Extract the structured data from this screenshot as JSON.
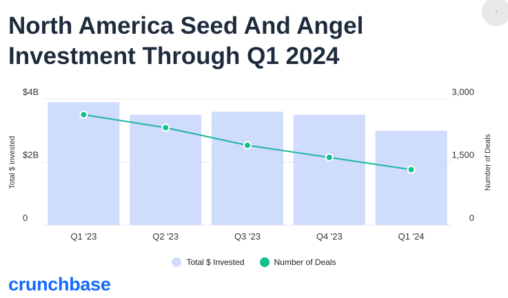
{
  "title_line1": "North America Seed And Angel",
  "title_line2": "Investment Through Q1 2024",
  "corner_button_glyph": "·",
  "brand": "crunchbase",
  "colors": {
    "bar": "#cfdcfb",
    "line": "#1bb5a4",
    "dot": "#12c08f",
    "dot_stroke": "#ffffff",
    "title": "#1e2b3c",
    "brand": "#146aff"
  },
  "chart_data": {
    "type": "bar",
    "categories": [
      "Q1 '23",
      "Q2 '23",
      "Q3 '23",
      "Q4 '23",
      "Q1 '24"
    ],
    "series": [
      {
        "name": "Total $ Invested",
        "type": "bar",
        "axis": "left",
        "values": [
          3.9,
          3.5,
          3.6,
          3.5,
          3.0
        ]
      },
      {
        "name": "Number of Deals",
        "type": "line",
        "axis": "right",
        "values": [
          2630,
          2320,
          1900,
          1610,
          1320
        ]
      }
    ],
    "y_left": {
      "label": "Total $ Invested",
      "min": 0,
      "max": 4,
      "ticks": [
        0,
        2,
        4
      ],
      "tick_labels": [
        "0",
        "$2B",
        "$4B"
      ]
    },
    "y_right": {
      "label": "Number of Deals",
      "min": 0,
      "max": 3000,
      "ticks": [
        0,
        1500,
        3000
      ],
      "tick_labels": [
        "0",
        "1,500",
        "3,000"
      ]
    },
    "grid": true,
    "legend_position": "bottom"
  }
}
